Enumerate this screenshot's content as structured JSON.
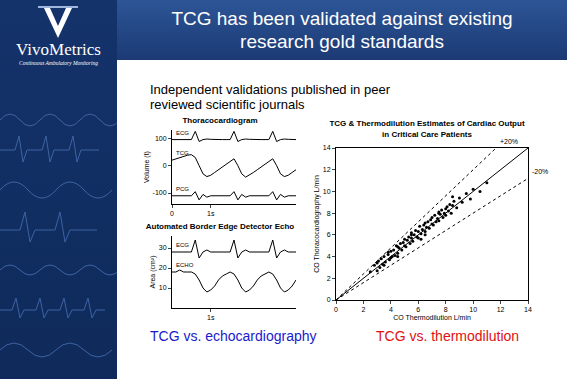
{
  "slide": {
    "logo": "VivoMetrics",
    "tagline": "Continuous Ambulatory Monitoring",
    "title": [
      "TCG has been validated against existing",
      "research gold standards"
    ],
    "subtitle": [
      "Independent validations published in peer",
      "reviewed scientific journals"
    ],
    "captions": [
      {
        "text": "TCG vs. echocardiography",
        "color": "#1a1acc"
      },
      {
        "text": "TCG vs. thermodilution",
        "color": "#e01010"
      }
    ]
  },
  "chart_data": [
    {
      "type": "line",
      "title": "Thoracocardiogram",
      "y_label": "Volume (t)",
      "x": [
        0.0,
        0.1,
        0.2,
        0.3,
        0.4,
        0.5,
        0.6,
        0.7,
        0.8,
        0.9,
        1.0,
        1.1,
        1.2,
        1.3,
        1.4,
        1.5,
        1.6,
        1.7,
        1.8,
        1.9,
        2.0,
        2.1,
        2.2,
        2.3,
        2.4,
        2.5,
        2.6,
        2.7,
        2.8,
        2.9,
        3.0,
        3.1,
        3.2
      ],
      "series": [
        {
          "name": "ECG",
          "color": "#000000",
          "values": [
            95,
            95,
            96,
            95,
            94,
            95,
            125,
            88,
            95,
            97,
            96,
            95,
            95,
            95,
            95,
            95,
            125,
            88,
            95,
            97,
            96,
            95,
            95,
            95,
            95,
            95,
            125,
            88,
            95,
            97,
            96,
            95,
            95
          ]
        },
        {
          "name": "TCG",
          "color": "#000000",
          "values": [
            20,
            25,
            30,
            35,
            38,
            40,
            30,
            0,
            -30,
            -40,
            -35,
            -25,
            -15,
            -5,
            5,
            15,
            25,
            0,
            -30,
            -42,
            -35,
            -25,
            -15,
            -5,
            5,
            15,
            25,
            0,
            -30,
            -40,
            -35,
            -25,
            -15
          ]
        },
        {
          "name": "PCG",
          "color": "#000000",
          "values": [
            -110,
            -110,
            -111,
            -110,
            -110,
            -110,
            -95,
            -125,
            -105,
            -115,
            -110,
            -110,
            -110,
            -110,
            -110,
            -110,
            -95,
            -125,
            -105,
            -115,
            -110,
            -110,
            -110,
            -110,
            -110,
            -110,
            -95,
            -125,
            -105,
            -115,
            -110,
            -110,
            -110
          ]
        }
      ],
      "xlim": [
        0,
        3.2
      ],
      "xticks": [
        0,
        {
          "value": 1,
          "label": "1s"
        }
      ],
      "ylim": [
        -140,
        130
      ],
      "yticks": [
        -100,
        0,
        100
      ],
      "grid": false
    },
    {
      "type": "line",
      "title": "Automated Border Edge Detector Echo",
      "y_label": "Area (cm²)",
      "x": [
        0.0,
        0.1,
        0.2,
        0.3,
        0.4,
        0.5,
        0.6,
        0.7,
        0.8,
        0.9,
        1.0,
        1.1,
        1.2,
        1.3,
        1.4,
        1.5,
        1.6,
        1.7,
        1.8,
        1.9,
        2.0,
        2.1,
        2.2,
        2.3,
        2.4,
        2.5,
        2.6,
        2.7,
        2.8,
        2.9,
        3.0,
        3.1,
        3.2
      ],
      "series": [
        {
          "name": "ECG",
          "color": "#000000",
          "values": [
            28,
            28,
            28,
            28,
            28,
            28,
            34,
            25,
            28,
            29,
            28,
            28,
            28,
            28,
            28,
            28,
            34,
            25,
            28,
            29,
            28,
            28,
            28,
            28,
            28,
            28,
            34,
            25,
            28,
            29,
            28,
            28,
            28
          ]
        },
        {
          "name": "ECHO",
          "color": "#000000",
          "values": [
            18,
            18,
            19,
            18,
            18,
            18,
            17,
            14,
            10,
            8,
            9,
            11,
            14,
            16,
            17,
            18,
            17,
            14,
            10,
            8,
            9,
            11,
            14,
            16,
            17,
            18,
            17,
            14,
            10,
            8,
            9,
            11,
            14
          ]
        }
      ],
      "xlim": [
        0,
        3.2
      ],
      "xticks": [
        {
          "value": 1,
          "label": "1s"
        }
      ],
      "ylim": [
        0,
        36
      ],
      "yticks": [
        10,
        20,
        30
      ],
      "grid": false
    },
    {
      "type": "scatter",
      "title": [
        "TCG & Thermodilution Estimates of Cardiac Output",
        "in Critical Care Patients"
      ],
      "x_label": "CO Thermodilution L/min",
      "y_label": "CO Thoracocardiography L/min",
      "series": [
        {
          "type": "scatter",
          "marker": "circle",
          "color": "#000000",
          "x": [
            2.5,
            2.8,
            3.0,
            3.1,
            3.2,
            3.3,
            3.4,
            3.5,
            3.5,
            3.6,
            3.8,
            3.9,
            4.0,
            4.0,
            4.1,
            4.2,
            4.3,
            4.4,
            4.5,
            4.5,
            4.6,
            4.7,
            4.8,
            4.9,
            5.0,
            5.0,
            5.1,
            5.2,
            5.3,
            5.4,
            5.5,
            5.5,
            5.6,
            5.7,
            5.8,
            5.9,
            6.0,
            6.0,
            6.1,
            6.2,
            6.3,
            6.4,
            6.5,
            6.5,
            6.6,
            6.7,
            6.8,
            6.9,
            7.0,
            7.0,
            7.1,
            7.2,
            7.3,
            7.4,
            7.5,
            7.5,
            7.6,
            7.7,
            7.8,
            7.9,
            8.0,
            8.0,
            8.1,
            8.2,
            8.3,
            8.4,
            8.5,
            8.6,
            8.8,
            9.0,
            9.2,
            9.5,
            9.8,
            10.0,
            10.5,
            11.0,
            3.0,
            4.5,
            5.5,
            6.5,
            7.5,
            8.5,
            3.8,
            6.2
          ],
          "values": [
            2.6,
            3.2,
            2.7,
            3.6,
            3.0,
            3.8,
            3.3,
            4.0,
            3.2,
            3.5,
            4.2,
            3.7,
            4.5,
            3.9,
            4.0,
            4.6,
            4.1,
            5.0,
            4.3,
            4.9,
            4.8,
            5.2,
            4.6,
            5.3,
            5.0,
            5.6,
            4.9,
            5.5,
            5.8,
            5.2,
            5.7,
            6.2,
            5.4,
            6.0,
            6.4,
            5.8,
            6.3,
            5.7,
            6.8,
            6.1,
            6.5,
            6.9,
            6.3,
            7.1,
            6.7,
            7.2,
            6.6,
            7.4,
            7.0,
            7.6,
            6.9,
            7.8,
            7.2,
            7.5,
            8.1,
            7.3,
            7.9,
            8.3,
            7.6,
            8.0,
            8.4,
            7.8,
            8.6,
            8.2,
            8.8,
            8.0,
            8.7,
            9.1,
            8.5,
            9.4,
            9.0,
            9.8,
            9.3,
            10.2,
            10.0,
            10.8,
            3.4,
            4.0,
            6.0,
            6.0,
            8.0,
            9.5,
            4.4,
            5.6
          ]
        },
        {
          "type": "line",
          "line_style": "solid",
          "color": "#000000",
          "x": [
            0,
            14
          ],
          "values": [
            0,
            14
          ]
        },
        {
          "type": "line",
          "line_style": "dotted",
          "color": "#000000",
          "name": "+20%",
          "x": [
            0,
            11.67
          ],
          "values": [
            0,
            14
          ]
        },
        {
          "type": "line",
          "line_style": "dotted",
          "color": "#000000",
          "name": "-20%",
          "x": [
            0,
            14
          ],
          "values": [
            0,
            11.2
          ]
        }
      ],
      "xlim": [
        0,
        14
      ],
      "xticks": [
        0,
        2,
        4,
        6,
        8,
        10,
        12,
        14
      ],
      "ylim": [
        0,
        14
      ],
      "yticks": [
        0,
        2,
        4,
        6,
        8,
        10,
        12,
        14
      ],
      "grid": false
    }
  ]
}
